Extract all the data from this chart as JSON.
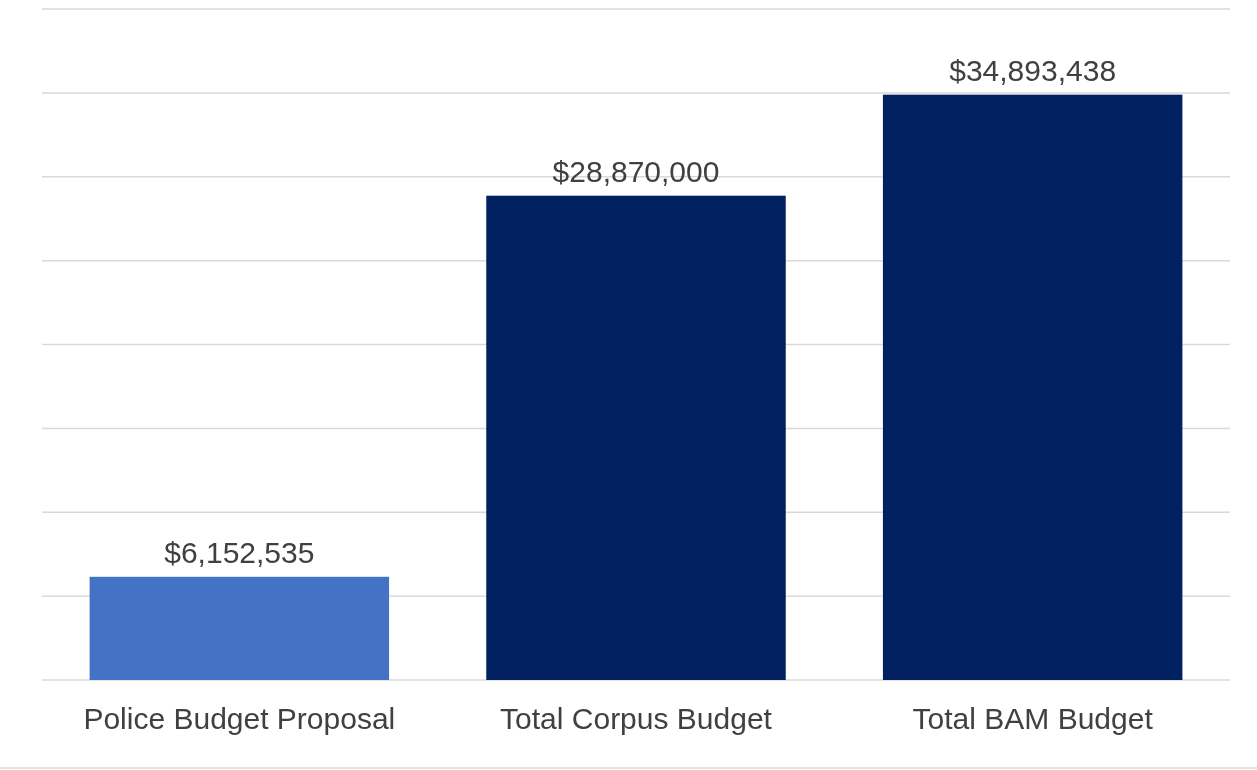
{
  "chart_data": {
    "type": "bar",
    "categories": [
      "Police Budget Proposal",
      "Total Corpus Budget",
      "Total BAM Budget"
    ],
    "values": [
      6152535,
      28870000,
      34893438
    ],
    "colors": [
      "#4472c4",
      "#002060",
      "#002060"
    ],
    "value_labels": [
      "$6,152,535",
      "$28,870,000",
      "$34,893,438"
    ],
    "ylim": [
      0,
      40000000
    ],
    "yticks": [
      {
        "value": 0,
        "label": null
      },
      {
        "value": 5000000,
        "label": null
      },
      {
        "value": 10000000,
        "label": null
      },
      {
        "value": 15000000,
        "label": null
      },
      {
        "value": 20000000,
        "label": null
      },
      {
        "value": 25000000,
        "label": null
      },
      {
        "value": 30000000,
        "label": null
      },
      {
        "value": 35000000,
        "label": null
      },
      {
        "value": 40000000,
        "label": null
      }
    ],
    "grid": "y",
    "tick_labels": "x"
  }
}
